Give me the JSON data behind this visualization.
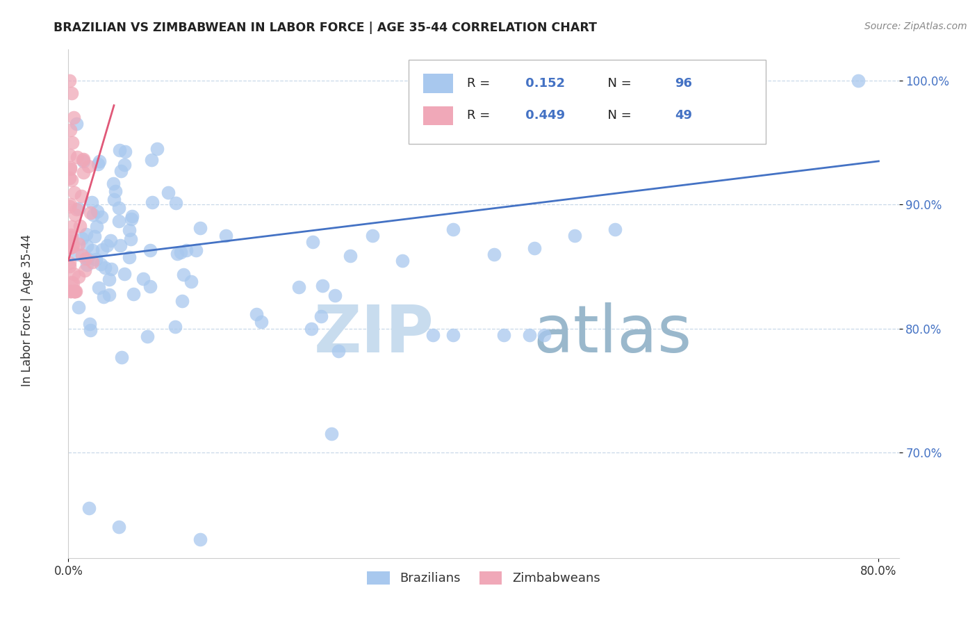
{
  "title": "BRAZILIAN VS ZIMBABWEAN IN LABOR FORCE | AGE 35-44 CORRELATION CHART",
  "source": "Source: ZipAtlas.com",
  "xlim": [
    0.0,
    0.82
  ],
  "ylim": [
    0.615,
    1.025
  ],
  "ylabel": "In Labor Force | Age 35-44",
  "legend_blue_label": "Brazilians",
  "legend_pink_label": "Zimbabweans",
  "R_blue": 0.152,
  "N_blue": 96,
  "R_pink": 0.449,
  "N_pink": 49,
  "blue_color": "#A8C8EE",
  "pink_color": "#F0A8B8",
  "blue_line_color": "#4472C4",
  "pink_line_color": "#E05878",
  "ytick_color": "#4472C4",
  "grid_color": "#C8D8E8",
  "watermark_zip_color": "#C8DCEE",
  "watermark_atlas_color": "#9AB8CC"
}
